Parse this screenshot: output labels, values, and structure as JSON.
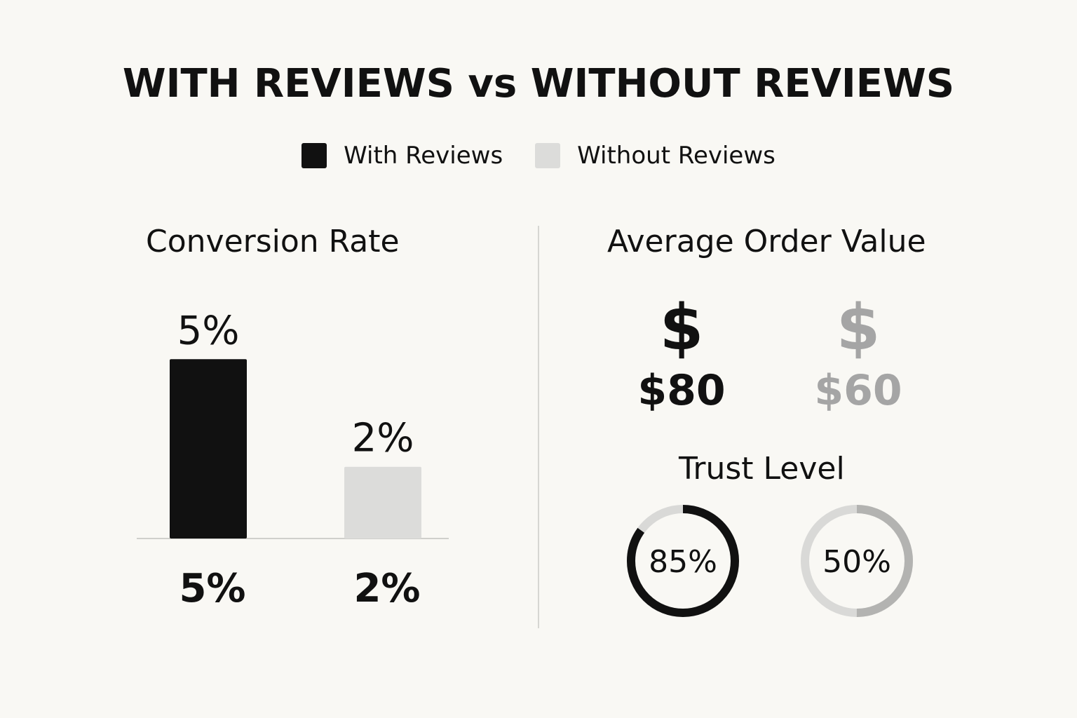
{
  "title": "WITH REVIEWS vs WITHOUT REVIEWS",
  "legend": [
    {
      "label": "With Reviews",
      "color": "#111111"
    },
    {
      "label": "Without Reviews",
      "color": "#dcdcda"
    }
  ],
  "colors": {
    "with": "#111111",
    "without_bar": "#dcdcda",
    "without_text": "#a5a5a5",
    "ring_track": "#d9d9d7",
    "ring_fill_light": "#b3b3b1",
    "axis": "#d0d0cc"
  },
  "chart_data": [
    {
      "type": "bar",
      "title": "Conversion Rate",
      "categories": [
        "With Reviews",
        "Without Reviews"
      ],
      "values": [
        5,
        2
      ],
      "value_labels": [
        "5%",
        "2%"
      ],
      "axis_labels": [
        "5%",
        "2%"
      ],
      "ylim": [
        0,
        7
      ],
      "grid": false
    }
  ],
  "aov": {
    "title": "Average Order Value",
    "with": {
      "sign": "$",
      "value": "$80"
    },
    "without": {
      "sign": "$",
      "value": "$60"
    }
  },
  "trust": {
    "title": "Trust Level",
    "with": {
      "value": 85,
      "label": "85%"
    },
    "without": {
      "value": 50,
      "label": "50%"
    }
  }
}
